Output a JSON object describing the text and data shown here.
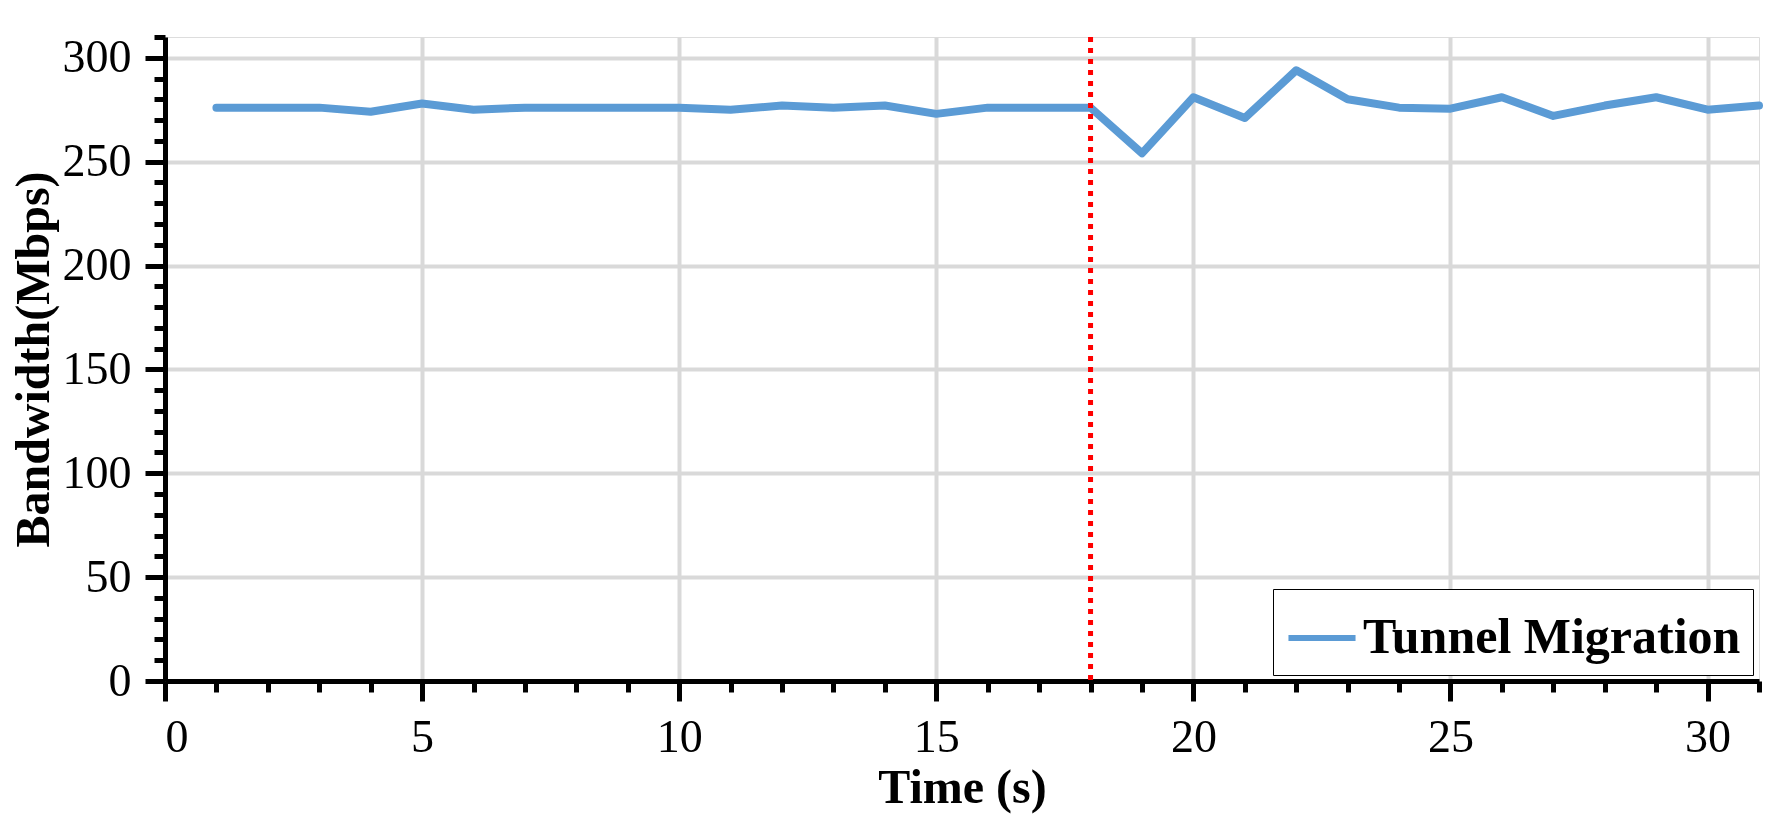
{
  "chart_data": {
    "type": "line",
    "xlabel": "Time (s)",
    "ylabel": "Bandwidth(Mbps)",
    "x": [
      1,
      2,
      3,
      4,
      5,
      6,
      7,
      8,
      9,
      10,
      11,
      12,
      13,
      14,
      15,
      16,
      17,
      18,
      19,
      20,
      21,
      22,
      23,
      24,
      25,
      26,
      27,
      28,
      29,
      30,
      31
    ],
    "series": [
      {
        "name": "Tunnel Migration",
        "color": "#5b9bd5",
        "values": [
          276,
          276,
          276,
          274,
          278,
          275,
          276,
          276,
          276,
          276,
          275,
          277,
          276,
          277,
          273,
          276,
          276,
          276,
          254,
          281,
          271,
          294,
          280,
          276,
          275.5,
          281,
          272,
          277,
          281,
          275,
          277
        ]
      }
    ],
    "xlim": [
      0,
      31
    ],
    "xticks": [
      0,
      {
        "value": 1,
        "label": null
      },
      {
        "value": 2,
        "label": null
      },
      {
        "value": 3,
        "label": null
      },
      {
        "value": 4,
        "label": null
      },
      5,
      {
        "value": 6,
        "label": null
      },
      {
        "value": 7,
        "label": null
      },
      {
        "value": 8,
        "label": null
      },
      {
        "value": 9,
        "label": null
      },
      10,
      {
        "value": 11,
        "label": null
      },
      {
        "value": 12,
        "label": null
      },
      {
        "value": 13,
        "label": null
      },
      {
        "value": 14,
        "label": null
      },
      15,
      {
        "value": 16,
        "label": null
      },
      {
        "value": 17,
        "label": null
      },
      {
        "value": 18,
        "label": null
      },
      {
        "value": 19,
        "label": null
      },
      20,
      {
        "value": 21,
        "label": null
      },
      {
        "value": 22,
        "label": null
      },
      {
        "value": 23,
        "label": null
      },
      {
        "value": 24,
        "label": null
      },
      25,
      {
        "value": 26,
        "label": null
      },
      {
        "value": 27,
        "label": null
      },
      {
        "value": 28,
        "label": null
      },
      {
        "value": 29,
        "label": null
      },
      30,
      {
        "value": 31,
        "label": null
      }
    ],
    "ylim": [
      0,
      310
    ],
    "yticks": [
      0,
      {
        "value": 10,
        "label": null
      },
      {
        "value": 20,
        "label": null
      },
      {
        "value": 30,
        "label": null
      },
      {
        "value": 40,
        "label": null
      },
      50,
      {
        "value": 60,
        "label": null
      },
      {
        "value": 70,
        "label": null
      },
      {
        "value": 80,
        "label": null
      },
      {
        "value": 90,
        "label": null
      },
      100,
      {
        "value": 110,
        "label": null
      },
      {
        "value": 120,
        "label": null
      },
      {
        "value": 130,
        "label": null
      },
      {
        "value": 140,
        "label": null
      },
      150,
      {
        "value": 160,
        "label": null
      },
      {
        "value": 170,
        "label": null
      },
      {
        "value": 180,
        "label": null
      },
      {
        "value": 190,
        "label": null
      },
      200,
      {
        "value": 210,
        "label": null
      },
      {
        "value": 220,
        "label": null
      },
      {
        "value": 230,
        "label": null
      },
      {
        "value": 240,
        "label": null
      },
      250,
      {
        "value": 260,
        "label": null
      },
      {
        "value": 270,
        "label": null
      },
      {
        "value": 280,
        "label": null
      },
      {
        "value": 290,
        "label": null
      },
      300,
      {
        "value": 310,
        "label": null
      }
    ],
    "ref_lines": [
      {
        "axis": "x",
        "value": 18,
        "label": null,
        "color": "#ff0000",
        "line_style": "dotted"
      }
    ],
    "grid": true,
    "legend": "bottom right",
    "line_style": "solid"
  }
}
